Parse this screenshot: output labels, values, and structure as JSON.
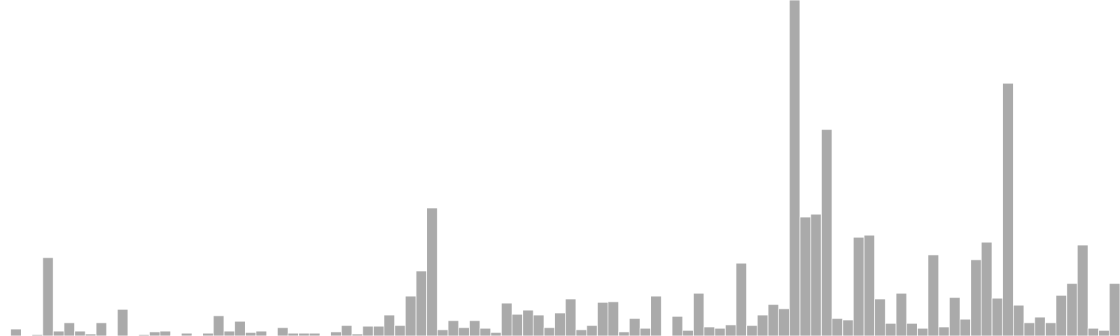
{
  "chart_data": {
    "type": "bar",
    "bar_color": "#aaaaaa",
    "bar_stroke": "#ffffff",
    "background": "#ffffff",
    "grid": false,
    "ylim": [
      0,
      480
    ],
    "values": [
      0,
      10,
      0,
      2,
      112,
      7,
      19,
      7,
      3,
      19,
      1,
      38,
      0,
      2,
      6,
      7,
      1,
      4,
      1,
      4,
      29,
      7,
      21,
      5,
      7,
      0,
      12,
      4,
      4,
      4,
      1,
      6,
      15,
      3,
      14,
      14,
      30,
      15,
      57,
      93,
      183,
      9,
      22,
      12,
      22,
      11,
      5,
      47,
      31,
      37,
      30,
      12,
      33,
      53,
      9,
      15,
      48,
      49,
      6,
      25,
      11,
      57,
      0,
      28,
      8,
      61,
      13,
      11,
      16,
      104,
      15,
      30,
      45,
      39,
      480,
      170,
      174,
      295,
      25,
      23,
      141,
      144,
      53,
      18,
      61,
      18,
      11,
      116,
      13,
      55,
      24,
      109,
      134,
      54,
      361,
      44,
      19,
      27,
      19,
      58,
      75,
      130,
      11,
      8,
      75
    ]
  }
}
